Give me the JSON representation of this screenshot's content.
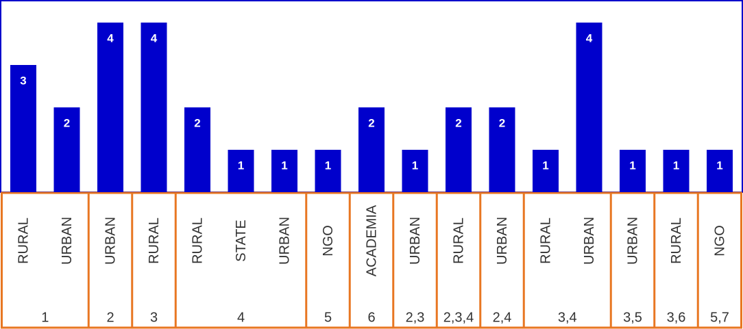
{
  "chart_data": {
    "type": "bar",
    "color": "#0000cc",
    "groups": [
      {
        "label": "1",
        "categories": [
          "RURAL",
          "URBAN"
        ],
        "values": [
          3,
          2
        ]
      },
      {
        "label": "2",
        "categories": [
          "URBAN"
        ],
        "values": [
          4
        ]
      },
      {
        "label": "3",
        "categories": [
          "RURAL"
        ],
        "values": [
          4
        ]
      },
      {
        "label": "4",
        "categories": [
          "RURAL",
          "STATE",
          "URBAN"
        ],
        "values": [
          2,
          1,
          1
        ]
      },
      {
        "label": "5",
        "categories": [
          "NGO"
        ],
        "values": [
          1
        ]
      },
      {
        "label": "6",
        "categories": [
          "ACADEMIA"
        ],
        "values": [
          2
        ]
      },
      {
        "label": "2,3",
        "categories": [
          "URBAN"
        ],
        "values": [
          1
        ]
      },
      {
        "label": "2,3,4",
        "categories": [
          "RURAL"
        ],
        "values": [
          2
        ]
      },
      {
        "label": "2,4",
        "categories": [
          "URBAN"
        ],
        "values": [
          2
        ]
      },
      {
        "label": "3,4",
        "categories": [
          "RURAL",
          "URBAN"
        ],
        "values": [
          1,
          4
        ]
      },
      {
        "label": "3,5",
        "categories": [
          "URBAN"
        ],
        "values": [
          1
        ]
      },
      {
        "label": "3,6",
        "categories": [
          "RURAL"
        ],
        "values": [
          1
        ]
      },
      {
        "label": "5,7",
        "categories": [
          "NGO"
        ],
        "values": [
          1
        ]
      }
    ]
  }
}
